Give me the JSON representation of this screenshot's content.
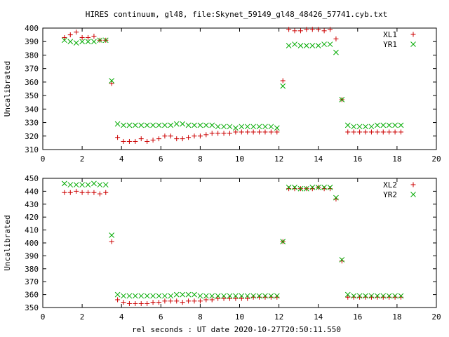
{
  "title": "HIRES continuum, gl48, file:Skynet_59149_gl48_48426_57741.cyb.txt",
  "xlabel": "rel seconds : UT date 2020-10-27T20:50:11.550",
  "colors": {
    "xl": "#cc0000",
    "yr": "#00aa00",
    "axis": "#000000"
  },
  "chart_data": [
    {
      "type": "scatter",
      "title": "HIRES continuum, gl48, file:Skynet_59149_gl48_48426_57741.cyb.txt",
      "xlabel": "",
      "ylabel": "Uncalibrated",
      "xlim": [
        0,
        20
      ],
      "ylim": [
        310,
        400
      ],
      "xticks": [
        0,
        2,
        4,
        6,
        8,
        10,
        12,
        14,
        16,
        18,
        20
      ],
      "yticks": [
        310,
        320,
        330,
        340,
        350,
        360,
        370,
        380,
        390,
        400
      ],
      "legend": "top-right",
      "series": [
        {
          "name": "XL1",
          "marker": "plus",
          "x": [
            1.1,
            1.4,
            1.7,
            2.0,
            2.3,
            2.6,
            2.9,
            3.2,
            3.5,
            3.8,
            4.1,
            4.4,
            4.7,
            5.0,
            5.3,
            5.6,
            5.9,
            6.2,
            6.5,
            6.8,
            7.1,
            7.4,
            7.7,
            8.0,
            8.3,
            8.6,
            8.9,
            9.2,
            9.5,
            9.8,
            10.1,
            10.4,
            10.7,
            11.0,
            11.3,
            11.6,
            11.9,
            12.2,
            12.5,
            12.8,
            13.1,
            13.4,
            13.7,
            14.0,
            14.3,
            14.6,
            14.9,
            15.2,
            15.5,
            15.8,
            16.1,
            16.4,
            16.7,
            17.0,
            17.3,
            17.6,
            17.9,
            18.2
          ],
          "y": [
            393,
            395,
            397,
            393,
            393,
            394,
            391,
            391,
            359,
            319,
            316,
            316,
            316,
            318,
            316,
            317,
            318,
            320,
            320,
            318,
            318,
            319,
            320,
            320,
            321,
            322,
            322,
            322,
            322,
            323,
            323,
            323,
            323,
            323,
            323,
            323,
            323,
            361,
            399,
            398,
            398,
            399,
            399,
            399,
            398,
            399,
            392,
            347,
            323,
            323,
            323,
            323,
            323,
            323,
            323,
            323,
            323,
            323
          ]
        },
        {
          "name": "YR1",
          "marker": "cross",
          "x": [
            1.1,
            1.4,
            1.7,
            2.0,
            2.3,
            2.6,
            2.9,
            3.2,
            3.5,
            3.8,
            4.1,
            4.4,
            4.7,
            5.0,
            5.3,
            5.6,
            5.9,
            6.2,
            6.5,
            6.8,
            7.1,
            7.4,
            7.7,
            8.0,
            8.3,
            8.6,
            8.9,
            9.2,
            9.5,
            9.8,
            10.1,
            10.4,
            10.7,
            11.0,
            11.3,
            11.6,
            11.9,
            12.2,
            12.5,
            12.8,
            13.1,
            13.4,
            13.7,
            14.0,
            14.3,
            14.6,
            14.9,
            15.2,
            15.5,
            15.8,
            16.1,
            16.4,
            16.7,
            17.0,
            17.3,
            17.6,
            17.9,
            18.2
          ],
          "y": [
            391,
            390,
            389,
            390,
            390,
            390,
            391,
            391,
            361,
            329,
            328,
            328,
            328,
            328,
            328,
            328,
            328,
            328,
            328,
            329,
            329,
            328,
            328,
            328,
            328,
            328,
            327,
            327,
            327,
            326,
            327,
            327,
            327,
            327,
            327,
            327,
            326,
            357,
            387,
            388,
            387,
            387,
            387,
            387,
            388,
            388,
            382,
            347,
            328,
            327,
            327,
            327,
            327,
            328,
            328,
            328,
            328,
            328
          ]
        }
      ]
    },
    {
      "type": "scatter",
      "xlabel": "rel seconds : UT date 2020-10-27T20:50:11.550",
      "ylabel": "Uncalibrated",
      "xlim": [
        0,
        20
      ],
      "ylim": [
        350,
        450
      ],
      "xticks": [
        0,
        2,
        4,
        6,
        8,
        10,
        12,
        14,
        16,
        18,
        20
      ],
      "yticks": [
        350,
        360,
        370,
        380,
        390,
        400,
        410,
        420,
        430,
        440,
        450
      ],
      "legend": "top-right",
      "series": [
        {
          "name": "XL2",
          "marker": "plus",
          "x": [
            1.1,
            1.4,
            1.7,
            2.0,
            2.3,
            2.6,
            2.9,
            3.2,
            3.5,
            3.8,
            4.1,
            4.4,
            4.7,
            5.0,
            5.3,
            5.6,
            5.9,
            6.2,
            6.5,
            6.8,
            7.1,
            7.4,
            7.7,
            8.0,
            8.3,
            8.6,
            8.9,
            9.2,
            9.5,
            9.8,
            10.1,
            10.4,
            10.7,
            11.0,
            11.3,
            11.6,
            11.9,
            12.2,
            12.5,
            12.8,
            13.1,
            13.4,
            13.7,
            14.0,
            14.3,
            14.6,
            14.9,
            15.2,
            15.5,
            15.8,
            16.1,
            16.4,
            16.7,
            17.0,
            17.3,
            17.6,
            17.9,
            18.2
          ],
          "y": [
            439,
            439,
            440,
            439,
            439,
            439,
            438,
            439,
            401,
            356,
            354,
            353,
            353,
            353,
            353,
            354,
            354,
            355,
            355,
            355,
            354,
            355,
            355,
            355,
            356,
            356,
            357,
            357,
            357,
            357,
            357,
            357,
            358,
            358,
            358,
            358,
            358,
            401,
            442,
            442,
            442,
            442,
            442,
            443,
            442,
            442,
            434,
            386,
            358,
            358,
            358,
            358,
            358,
            358,
            358,
            358,
            358,
            358
          ]
        },
        {
          "name": "YR2",
          "marker": "cross",
          "x": [
            1.1,
            1.4,
            1.7,
            2.0,
            2.3,
            2.6,
            2.9,
            3.2,
            3.5,
            3.8,
            4.1,
            4.4,
            4.7,
            5.0,
            5.3,
            5.6,
            5.9,
            6.2,
            6.5,
            6.8,
            7.1,
            7.4,
            7.7,
            8.0,
            8.3,
            8.6,
            8.9,
            9.2,
            9.5,
            9.8,
            10.1,
            10.4,
            10.7,
            11.0,
            11.3,
            11.6,
            11.9,
            12.2,
            12.5,
            12.8,
            13.1,
            13.4,
            13.7,
            14.0,
            14.3,
            14.6,
            14.9,
            15.2,
            15.5,
            15.8,
            16.1,
            16.4,
            16.7,
            17.0,
            17.3,
            17.6,
            17.9,
            18.2
          ],
          "y": [
            446,
            445,
            445,
            445,
            445,
            446,
            445,
            445,
            406,
            360,
            359,
            359,
            359,
            359,
            359,
            359,
            359,
            359,
            359,
            360,
            360,
            360,
            360,
            359,
            359,
            359,
            359,
            359,
            359,
            359,
            359,
            359,
            359,
            359,
            359,
            359,
            359,
            401,
            443,
            443,
            442,
            442,
            443,
            443,
            443,
            443,
            435,
            387,
            360,
            359,
            359,
            359,
            359,
            359,
            359,
            359,
            359,
            359
          ]
        }
      ]
    }
  ]
}
